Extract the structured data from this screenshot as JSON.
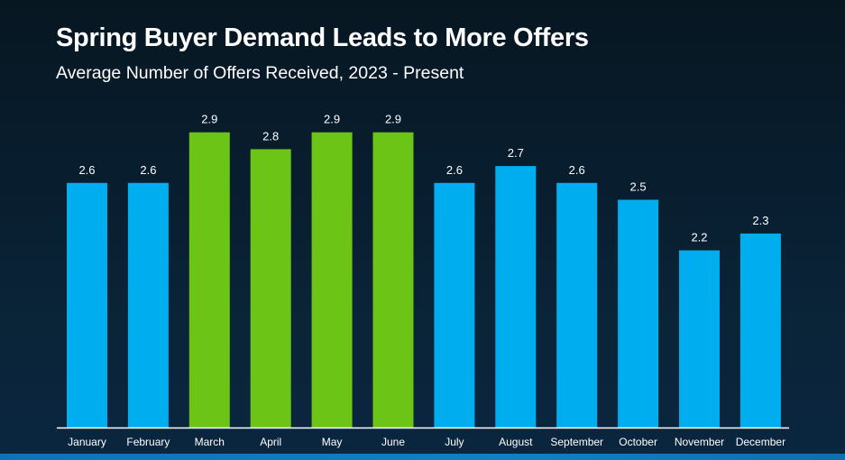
{
  "chart_data": {
    "type": "bar",
    "title": "Spring Buyer Demand Leads to More Offers",
    "subtitle": "Average Number of Offers Received, 2023 - Present",
    "xlabel": "",
    "ylabel": "",
    "categories": [
      "January",
      "February",
      "March",
      "April",
      "May",
      "June",
      "July",
      "August",
      "September",
      "October",
      "November",
      "December"
    ],
    "values": [
      2.6,
      2.6,
      2.9,
      2.8,
      2.9,
      2.9,
      2.6,
      2.7,
      2.6,
      2.5,
      2.2,
      2.3
    ],
    "value_labels": [
      "2.6",
      "2.6",
      "2.9",
      "2.8",
      "2.9",
      "2.9",
      "2.6",
      "2.7",
      "2.6",
      "2.5",
      "2.2",
      "2.3"
    ],
    "highlight": [
      "default",
      "default",
      "spring",
      "spring",
      "spring",
      "spring",
      "default",
      "default",
      "default",
      "default",
      "default",
      "default"
    ],
    "colors": {
      "default": "#00aeef",
      "spring": "#6cc417",
      "axis": "#ffffff",
      "label": "#ffffff"
    },
    "ylim": [
      1.15,
      3.0
    ],
    "grid": false,
    "legend": "none",
    "y_axis_visible": false
  }
}
